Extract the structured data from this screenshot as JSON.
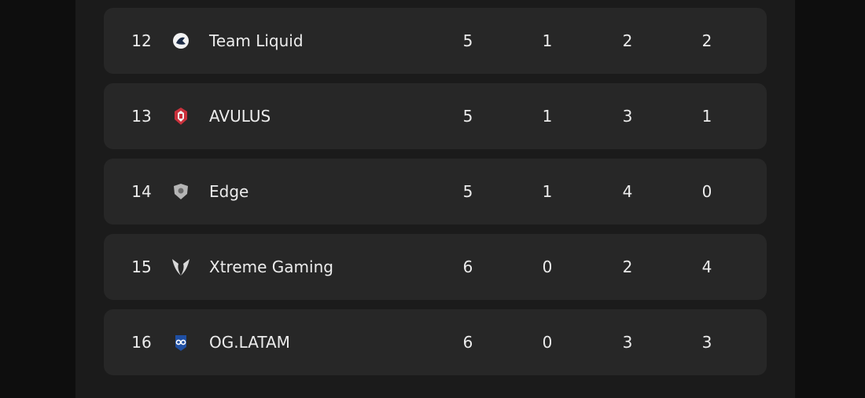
{
  "table": {
    "rows": [
      {
        "rank": 12,
        "team": "Team Liquid",
        "values": [
          5,
          1,
          2,
          2
        ]
      },
      {
        "rank": 13,
        "team": "AVULUS",
        "values": [
          5,
          1,
          3,
          1
        ]
      },
      {
        "rank": 14,
        "team": "Edge",
        "values": [
          5,
          1,
          4,
          0
        ]
      },
      {
        "rank": 15,
        "team": "Xtreme Gaming",
        "values": [
          6,
          0,
          2,
          4
        ]
      },
      {
        "rank": 16,
        "team": "OG.LATAM",
        "values": [
          6,
          0,
          3,
          3
        ]
      }
    ]
  }
}
